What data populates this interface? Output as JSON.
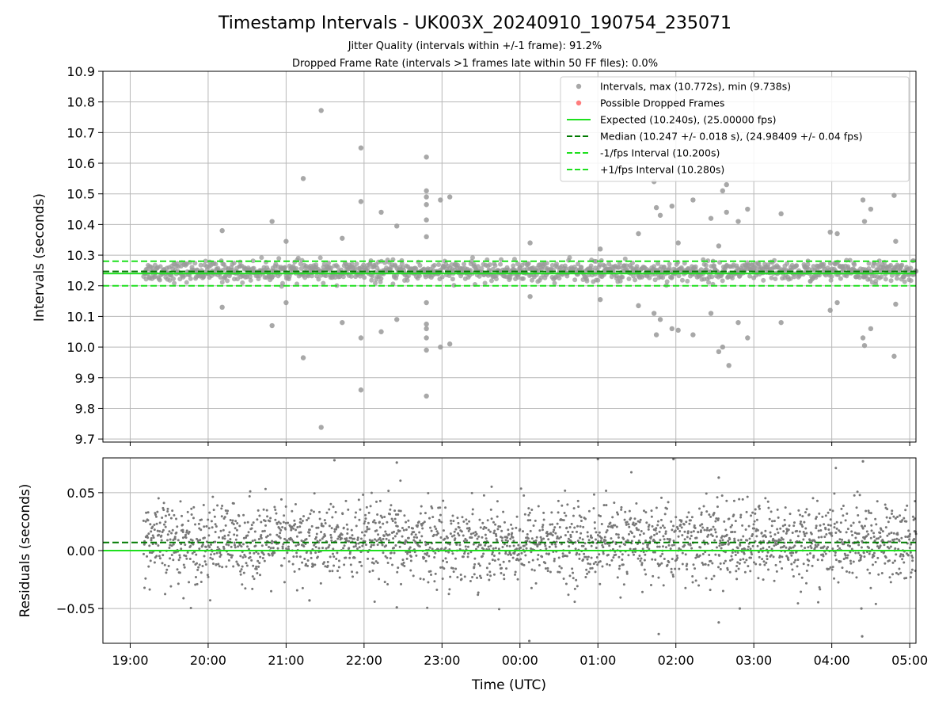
{
  "chart_data": [
    {
      "type": "scatter",
      "title": "Timestamp Intervals - UK003X_20240910_190754_235071",
      "subtitle_lines": [
        "Jitter Quality (intervals within +/-1 frame): 91.2%",
        "Dropped Frame Rate (intervals >1 frames late within 50 FF files): 0.0%"
      ],
      "ylabel": "Intervals (seconds)",
      "ylim": [
        9.69,
        10.9
      ],
      "yticks": [
        "10.9",
        "10.8",
        "10.7",
        "10.6",
        "10.5",
        "10.4",
        "10.3",
        "10.2",
        "10.1",
        "10.0",
        "9.9",
        "9.8",
        "9.7"
      ],
      "ytick_values": [
        10.9,
        10.8,
        10.7,
        10.6,
        10.5,
        10.4,
        10.3,
        10.2,
        10.1,
        10.0,
        9.9,
        9.8,
        9.7
      ],
      "grid": true,
      "legend_position": "top-right",
      "series": [
        {
          "name": "Intervals, max (10.772s), min (9.738s)",
          "kind": "scatter",
          "color": "#999999"
        },
        {
          "name": "Possible Dropped Frames",
          "kind": "scatter",
          "color": "#ff6666"
        },
        {
          "name": "Expected (10.240s), (25.00000 fps)",
          "kind": "hline",
          "value": 10.24,
          "color": "#1ee01e",
          "style": "solid"
        },
        {
          "name": "Median (10.247 +/- 0.018 s), (24.98409 +/- 0.04 fps)",
          "kind": "hline",
          "value": 10.247,
          "color": "#007a00",
          "style": "dashed"
        },
        {
          "name": "-1/fps Interval (10.200s)",
          "kind": "hline",
          "value": 10.2,
          "color": "#1ee01e",
          "style": "dashed"
        },
        {
          "name": "+1/fps Interval (10.280s)",
          "kind": "hline",
          "value": 10.28,
          "color": "#1ee01e",
          "style": "dashed"
        }
      ],
      "points_start_hour": 19.17,
      "points_end_hour": 29.08,
      "outliers": [
        [
          20.18,
          10.38
        ],
        [
          20.18,
          10.13
        ],
        [
          20.82,
          10.41
        ],
        [
          20.82,
          10.07
        ],
        [
          21.0,
          10.345
        ],
        [
          21.0,
          10.145
        ],
        [
          21.22,
          10.55
        ],
        [
          21.22,
          9.965
        ],
        [
          21.45,
          10.772
        ],
        [
          21.45,
          9.738
        ],
        [
          21.72,
          10.355
        ],
        [
          21.72,
          10.08
        ],
        [
          21.96,
          10.65
        ],
        [
          21.96,
          10.475
        ],
        [
          21.96,
          10.03
        ],
        [
          21.96,
          9.86
        ],
        [
          22.22,
          10.44
        ],
        [
          22.22,
          10.05
        ],
        [
          22.42,
          10.395
        ],
        [
          22.42,
          10.09
        ],
        [
          22.8,
          10.62
        ],
        [
          22.8,
          10.51
        ],
        [
          22.8,
          10.49
        ],
        [
          22.8,
          10.465
        ],
        [
          22.8,
          10.415
        ],
        [
          22.8,
          10.36
        ],
        [
          22.8,
          10.145
        ],
        [
          22.8,
          10.075
        ],
        [
          22.8,
          10.06
        ],
        [
          22.8,
          10.03
        ],
        [
          22.8,
          9.99
        ],
        [
          22.8,
          9.84
        ],
        [
          22.98,
          10.48
        ],
        [
          22.98,
          10.0
        ],
        [
          23.1,
          10.49
        ],
        [
          23.1,
          10.01
        ],
        [
          24.13,
          10.34
        ],
        [
          24.13,
          10.165
        ],
        [
          25.03,
          10.32
        ],
        [
          25.03,
          10.155
        ],
        [
          25.52,
          10.37
        ],
        [
          25.52,
          10.135
        ],
        [
          25.72,
          10.54
        ],
        [
          25.72,
          10.11
        ],
        [
          25.75,
          10.455
        ],
        [
          25.75,
          10.04
        ],
        [
          25.8,
          10.43
        ],
        [
          25.8,
          10.09
        ],
        [
          25.95,
          10.46
        ],
        [
          25.95,
          10.06
        ],
        [
          26.03,
          10.34
        ],
        [
          26.03,
          10.055
        ],
        [
          26.22,
          10.48
        ],
        [
          26.22,
          10.04
        ],
        [
          26.45,
          10.42
        ],
        [
          26.45,
          10.11
        ],
        [
          26.55,
          10.33
        ],
        [
          26.55,
          9.985
        ],
        [
          26.6,
          10.51
        ],
        [
          26.6,
          10.0
        ],
        [
          26.65,
          10.53
        ],
        [
          26.65,
          10.44
        ],
        [
          26.68,
          9.94
        ],
        [
          26.8,
          10.41
        ],
        [
          26.8,
          10.08
        ],
        [
          26.92,
          10.45
        ],
        [
          26.92,
          10.03
        ],
        [
          27.35,
          10.435
        ],
        [
          27.35,
          10.08
        ],
        [
          27.98,
          10.375
        ],
        [
          27.98,
          10.12
        ],
        [
          28.07,
          10.37
        ],
        [
          28.07,
          10.145
        ],
        [
          28.4,
          10.48
        ],
        [
          28.4,
          10.03
        ],
        [
          28.42,
          10.41
        ],
        [
          28.42,
          10.005
        ],
        [
          28.5,
          10.45
        ],
        [
          28.5,
          10.06
        ],
        [
          28.8,
          10.495
        ],
        [
          28.8,
          9.97
        ],
        [
          28.82,
          10.345
        ],
        [
          28.82,
          10.14
        ]
      ]
    },
    {
      "type": "scatter",
      "xlabel": "Time (UTC)",
      "ylabel": "Residuals (seconds)",
      "ylim": [
        -0.08,
        0.08
      ],
      "yticks": [
        "0.05",
        "0.00",
        "−0.05"
      ],
      "ytick_values": [
        0.05,
        0.0,
        -0.05
      ],
      "xlim_hours": [
        18.65,
        29.08
      ],
      "xticks": [
        "19:00",
        "20:00",
        "21:00",
        "22:00",
        "23:00",
        "00:00",
        "01:00",
        "02:00",
        "03:00",
        "04:00",
        "05:00"
      ],
      "xtick_hours": [
        19,
        20,
        21,
        22,
        23,
        24,
        25,
        26,
        27,
        28,
        29
      ],
      "grid": true,
      "reference_lines": [
        {
          "value": 0.007,
          "color": "#007a00",
          "style": "dashed"
        },
        {
          "value": 0.0,
          "color": "#1ee01e",
          "style": "solid"
        }
      ],
      "points_color": "#777777",
      "residual_spread": 0.02
    }
  ]
}
